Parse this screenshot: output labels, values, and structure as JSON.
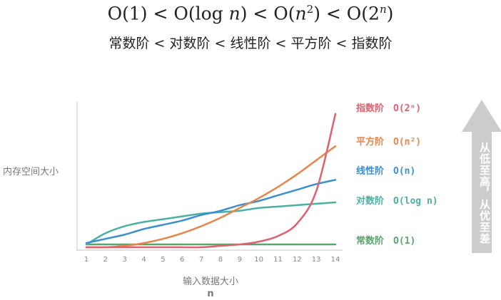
{
  "header": {
    "formula_parts": [
      "O(1) < O(log ",
      "n",
      ") < O(",
      "n",
      "",
      "2",
      ") < O(2",
      "n",
      ")"
    ],
    "words": "常数阶 < 对数阶 < 线性阶 < 平方阶 < 指数阶"
  },
  "chart_data": {
    "type": "line",
    "title": "",
    "xlabel": "输入数据大小",
    "xlabel_symbol": "n",
    "ylabel": "内存空间大小",
    "x": [
      1,
      2,
      3,
      4,
      5,
      6,
      7,
      8,
      9,
      10,
      11,
      12,
      13,
      14
    ],
    "xlim": [
      1,
      14
    ],
    "x_ticks": [
      "1",
      "2",
      "3",
      "4",
      "5",
      "6",
      "7",
      "8",
      "9",
      "10",
      "11",
      "12",
      "13",
      "14"
    ],
    "grid": false,
    "series": [
      {
        "name": "常数阶",
        "complexity": "O(1)",
        "color": "#5aa36c",
        "values": [
          0.02,
          0.02,
          0.02,
          0.02,
          0.02,
          0.02,
          0.02,
          0.02,
          0.02,
          0.02,
          0.02,
          0.02,
          0.02,
          0.02
        ]
      },
      {
        "name": "对数阶",
        "complexity": "O(log n)",
        "color": "#4bb0a4",
        "values": [
          0.02,
          0.1,
          0.15,
          0.18,
          0.2,
          0.22,
          0.24,
          0.25,
          0.26,
          0.28,
          0.29,
          0.3,
          0.31,
          0.32
        ]
      },
      {
        "name": "线性阶",
        "complexity": "O(n)",
        "color": "#3b8fd0",
        "values": [
          0.03,
          0.06,
          0.09,
          0.13,
          0.16,
          0.19,
          0.23,
          0.26,
          0.3,
          0.33,
          0.37,
          0.41,
          0.45,
          0.48
        ]
      },
      {
        "name": "平方阶",
        "complexity": "O(n²)",
        "color": "#e8854a",
        "values": [
          0.0,
          0.0,
          0.01,
          0.03,
          0.06,
          0.1,
          0.15,
          0.21,
          0.28,
          0.35,
          0.43,
          0.52,
          0.62,
          0.72
        ]
      },
      {
        "name": "指数阶",
        "complexity": "O(2ⁿ)",
        "color": "#e06070",
        "values": [
          0.0,
          0.0,
          0.0,
          0.0,
          0.0,
          0.0,
          0.0,
          0.01,
          0.02,
          0.04,
          0.08,
          0.17,
          0.4,
          0.95
        ]
      }
    ],
    "ranking_arrow_label": "从低至高，从优至差",
    "ranking_arrow_color": "#cccccc"
  }
}
